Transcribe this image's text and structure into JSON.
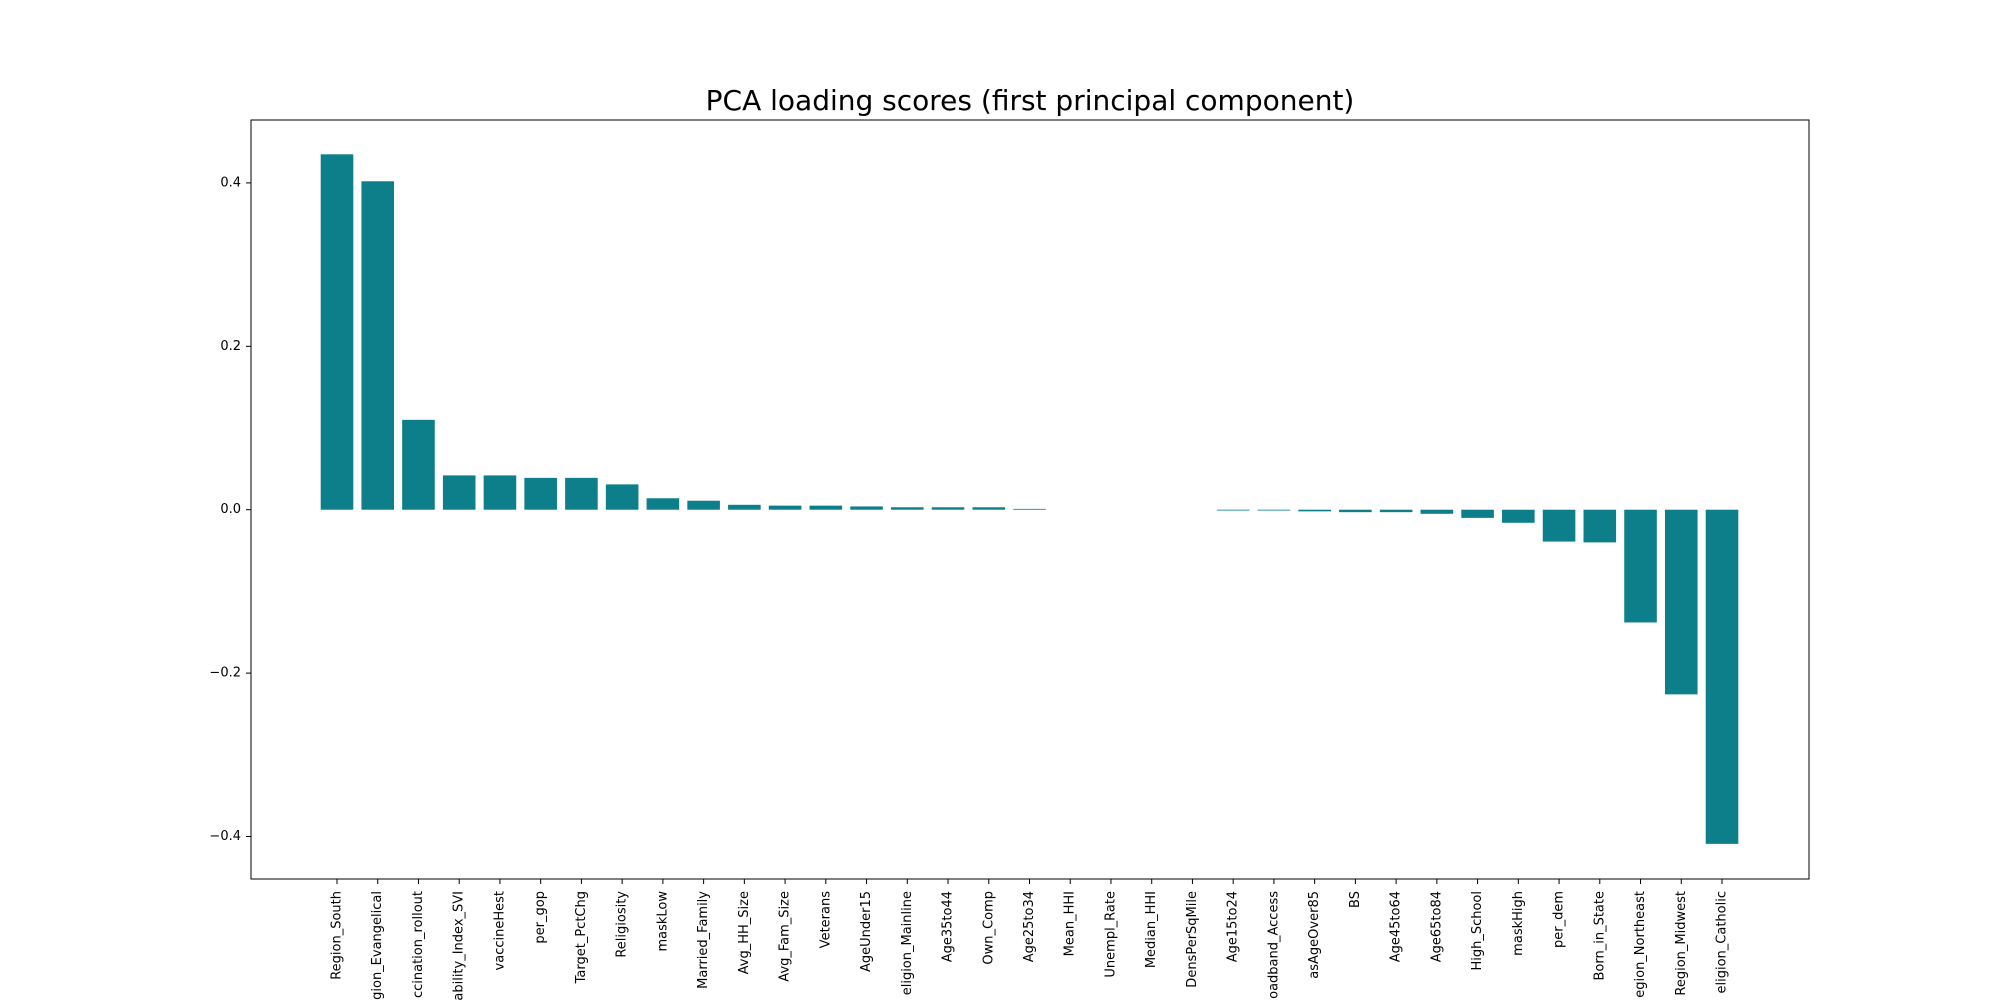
{
  "chart_data": {
    "type": "bar",
    "title": "PCA loading scores (first principal component)",
    "categories": [
      "Region_South",
      "gion_Evangelical",
      "ccination_rollout",
      "ability_Index_SVI",
      "vaccineHest",
      "per_gop",
      "Target_PctChg",
      "Religiosity",
      "maskLow",
      "Married_Family",
      "Avg_HH_Size",
      "Avg_Fam_Size",
      "Veterans",
      "AgeUnder15",
      "eligion_Mainline",
      "Age35to44",
      "Own_Comp",
      "Age25to34",
      "Mean_HHI",
      "Unempl_Rate",
      "Median_HHI",
      "DensPerSqMile",
      "Age15to24",
      "oadband_Access",
      "asAgeOver85",
      "BS",
      "Age45to64",
      "Age65to84",
      "High_School",
      "maskHigh",
      "per_dem",
      "Born_in_State",
      "egion_Northeast",
      "Region_Midwest",
      "eligion_Catholic"
    ],
    "values": [
      0.435,
      0.402,
      0.11,
      0.042,
      0.042,
      0.039,
      0.039,
      0.031,
      0.014,
      0.011,
      0.006,
      0.005,
      0.005,
      0.004,
      0.003,
      0.003,
      0.003,
      0.001,
      0,
      0,
      0,
      0,
      -0.001,
      -0.001,
      -0.002,
      -0.003,
      -0.003,
      -0.005,
      -0.01,
      -0.016,
      -0.039,
      -0.04,
      -0.138,
      -0.226,
      -0.409
    ],
    "color": "#0c7f8b",
    "ylim": [
      -0.452,
      0.477
    ],
    "yticks": [
      {
        "value": -0.4,
        "label": "−0.4"
      },
      {
        "value": -0.2,
        "label": "−0.2"
      },
      {
        "value": 0,
        "label": "0.0"
      },
      0.2,
      0.4
    ],
    "grid": false
  }
}
